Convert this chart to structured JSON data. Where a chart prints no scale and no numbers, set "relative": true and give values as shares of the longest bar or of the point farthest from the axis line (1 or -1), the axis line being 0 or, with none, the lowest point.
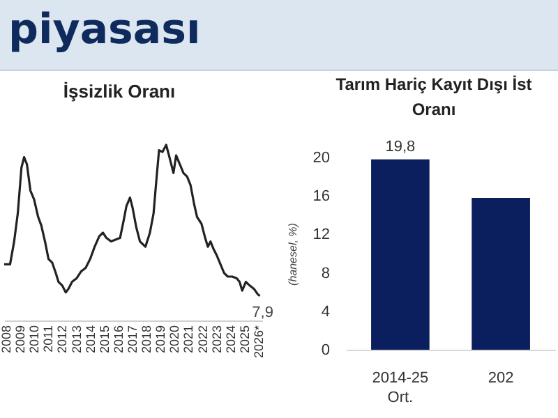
{
  "chart_data": [
    {
      "type": "line",
      "title": "İşsizlik Oranı",
      "annotations": [
        "piyasası",
        {
          "text": "7,9",
          "x": 2026.13,
          "y": 0.14
        }
      ],
      "relative": true,
      "grid": false,
      "marker": "none",
      "x": [
        2007.9,
        2008.32,
        2008.61,
        2008.87,
        2009.13,
        2009.32,
        2009.52,
        2009.77,
        2010.03,
        2010.32,
        2010.55,
        2010.81,
        2011.06,
        2011.32,
        2011.58,
        2011.77,
        2012.03,
        2012.29,
        2012.48,
        2012.74,
        2013.06,
        2013.39,
        2013.71,
        2014.03,
        2014.35,
        2014.68,
        2014.94,
        2015.19,
        2015.52,
        2015.84,
        2016.16,
        2016.42,
        2016.61,
        2016.87,
        2017.06,
        2017.32,
        2017.58,
        2017.97,
        2018.29,
        2018.55,
        2018.74,
        2018.94,
        2019.19,
        2019.45,
        2019.65,
        2019.97,
        2020.16,
        2020.42,
        2020.68,
        2020.94,
        2021.19,
        2021.45,
        2021.65,
        2021.97,
        2022.23,
        2022.42,
        2022.61,
        2022.81,
        2023.06,
        2023.32,
        2023.58,
        2023.84,
        2024.16,
        2024.48,
        2024.68,
        2024.87,
        2025.13,
        2025.39,
        2025.71,
        2025.97,
        2026.13
      ],
      "series": [
        {
          "color": "#222222",
          "values": [
            0.32,
            0.32,
            0.45,
            0.61,
            0.87,
            0.93,
            0.89,
            0.74,
            0.69,
            0.59,
            0.54,
            0.45,
            0.35,
            0.33,
            0.27,
            0.22,
            0.2,
            0.16,
            0.18,
            0.22,
            0.24,
            0.28,
            0.3,
            0.35,
            0.42,
            0.48,
            0.5,
            0.47,
            0.45,
            0.46,
            0.47,
            0.57,
            0.65,
            0.7,
            0.64,
            0.53,
            0.45,
            0.42,
            0.5,
            0.61,
            0.79,
            0.97,
            0.96,
            1.0,
            0.94,
            0.84,
            0.94,
            0.89,
            0.84,
            0.82,
            0.77,
            0.66,
            0.59,
            0.55,
            0.47,
            0.42,
            0.45,
            0.41,
            0.37,
            0.32,
            0.27,
            0.25,
            0.25,
            0.24,
            0.22,
            0.17,
            0.22,
            0.2,
            0.18,
            0.15,
            0.14
          ]
        }
      ],
      "xlim": [
        2007.9,
        2026.3
      ],
      "xticks": [
        2008,
        2009,
        2010,
        2011,
        2012,
        2013,
        2014,
        2015,
        2016,
        2017,
        2018,
        2019,
        2020,
        2021,
        2022,
        2023,
        2024,
        2025,
        {
          "value": 2026,
          "label": "2026*"
        }
      ]
    },
    {
      "type": "bar",
      "title": "Tarım Hariç Kayıt Dışı İst\nOranı",
      "ylabel": "(hanesel, %)",
      "grid": false,
      "categories": [
        "2014-25\nOrt.",
        "202"
      ],
      "series": [
        {
          "color": "#0b1f5e",
          "values": [
            19.8,
            15.8
          ],
          "value_labels": [
            "19,8",
            null
          ]
        }
      ],
      "ylim": [
        0,
        20
      ],
      "yticks": [
        0,
        4,
        8,
        12,
        16,
        20
      ]
    }
  ]
}
